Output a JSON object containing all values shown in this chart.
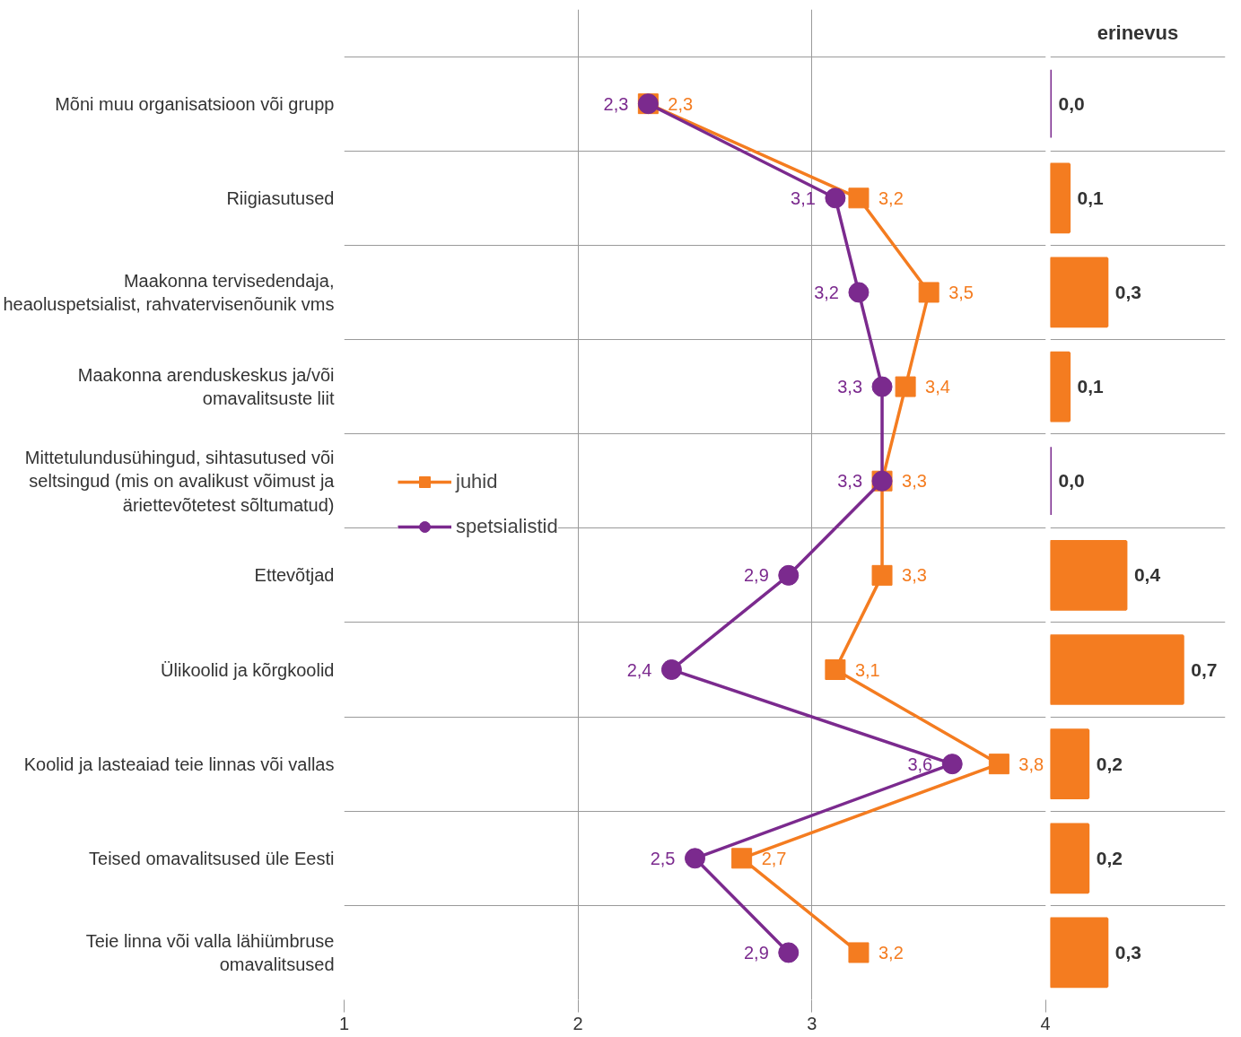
{
  "chart_data": [
    {
      "type": "line",
      "orientation": "horizontal",
      "categories": [
        "Mõni muu organisatsioon või grupp",
        "Riigiasutused",
        "Maakonna tervisedendaja, heaoluspetsialist, rahvatervisenõunik vms",
        "Maakonna arenduskeskus ja/või omavalitsuste liit",
        "Mittetulundusühingud, sihtasutused või seltsingud (mis on avalikust võimust ja äriettevõtetest sõltumatud)",
        "Ettevõtjad",
        "Ülikoolid ja kõrgkoolid",
        "Koolid ja lasteaiad teie linnas või vallas",
        "Teised omavalitsused üle Eesti",
        "Teie linna või valla lähiümbruse omavalitsused"
      ],
      "series": [
        {
          "name": "juhid",
          "color": "#f47c20",
          "marker": "square",
          "values": [
            2.3,
            3.2,
            3.5,
            3.4,
            3.3,
            3.3,
            3.1,
            3.8,
            2.7,
            3.2
          ],
          "value_labels": [
            "2,3",
            "3,2",
            "3,5",
            "3,4",
            "3,3",
            "3,3",
            "3,1",
            "3,8",
            "2,7",
            "3,2"
          ]
        },
        {
          "name": "spetsialistid",
          "color": "#7b2a8e",
          "marker": "circle",
          "values": [
            2.3,
            3.1,
            3.2,
            3.3,
            3.3,
            2.9,
            2.4,
            3.6,
            2.5,
            2.9
          ],
          "value_labels": [
            "2,3",
            "3,1",
            "3,2",
            "3,3",
            "3,3",
            "2,9",
            "2,4",
            "3,6",
            "2,5",
            "2,9"
          ]
        }
      ],
      "xlim": [
        1,
        4
      ],
      "xticks": [
        1,
        2,
        3,
        4
      ],
      "grid": true,
      "legend": "left"
    },
    {
      "type": "bar",
      "orientation": "horizontal",
      "title": "erinevus",
      "categories": [
        "Mõni muu organisatsioon või grupp",
        "Riigiasutused",
        "Maakonna tervisedendaja, heaoluspetsialist, rahvatervisenõunik vms",
        "Maakonna arenduskeskus ja/või omavalitsuste liit",
        "Mittetulundusühingud, sihtasutused või seltsingud (mis on avalikust võimust ja äriettevõtetest sõltumatud)",
        "Ettevõtjad",
        "Ülikoolid ja kõrgkoolid",
        "Koolid ja lasteaiad teie linnas või vallas",
        "Teised omavalitsused üle Eesti",
        "Teie linna või valla lähiümbruse omavalitsused"
      ],
      "values": [
        0.0,
        0.1,
        0.3,
        0.1,
        0.0,
        0.4,
        0.7,
        0.2,
        0.2,
        0.3
      ],
      "value_labels": [
        "0,0",
        "0,1",
        "0,3",
        "0,1",
        "0,0",
        "0,4",
        "0,7",
        "0,2",
        "0,2",
        "0,3"
      ],
      "colors": [
        "#7b2a8e",
        "#f47c20",
        "#f47c20",
        "#f47c20",
        "#7b2a8e",
        "#f47c20",
        "#f47c20",
        "#f47c20",
        "#f47c20",
        "#f47c20"
      ],
      "tick_labels": false,
      "grid": true
    }
  ]
}
